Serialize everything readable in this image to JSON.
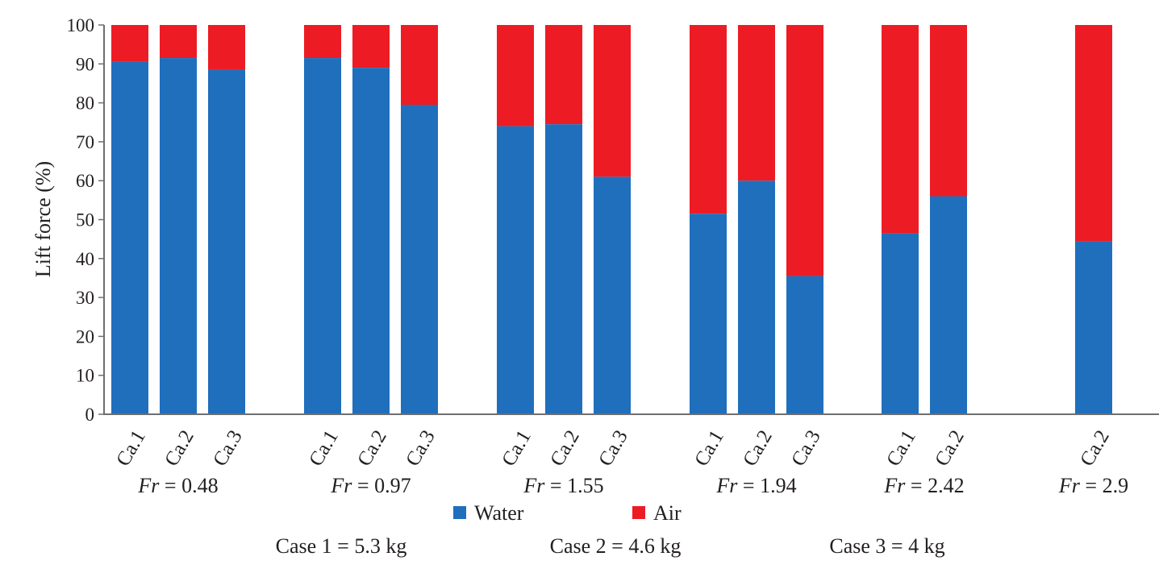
{
  "chart_data": {
    "type": "bar",
    "stacked": true,
    "ylabel": "Lift force (%)",
    "ylim": [
      0,
      100
    ],
    "yticks": [
      "0",
      "10",
      "20",
      "30",
      "40",
      "50",
      "60",
      "70",
      "80",
      "90",
      "100"
    ],
    "group_prefix": "Fr",
    "groups": [
      {
        "label": "Fr = 0.48",
        "fr_value": "= 0.48",
        "cases": [
          "Ca.1",
          "Ca.2",
          "Ca.3"
        ],
        "water": [
          90.5,
          91.5,
          88.5
        ]
      },
      {
        "label": "Fr = 0.97",
        "fr_value": "= 0.97",
        "cases": [
          "Ca.1",
          "Ca.2",
          "Ca.3"
        ],
        "water": [
          91.5,
          89,
          79.5
        ]
      },
      {
        "label": "Fr = 1.55",
        "fr_value": "= 1.55",
        "cases": [
          "Ca.1",
          "Ca.2",
          "Ca.3"
        ],
        "water": [
          74,
          74.5,
          61
        ]
      },
      {
        "label": "Fr = 1.94",
        "fr_value": "= 1.94",
        "cases": [
          "Ca.1",
          "Ca.2",
          "Ca.3"
        ],
        "water": [
          51.5,
          60,
          35.5
        ]
      },
      {
        "label": "Fr = 2.42",
        "fr_value": "= 2.42",
        "cases": [
          "Ca.1",
          "Ca.2"
        ],
        "water": [
          46.5,
          56
        ]
      },
      {
        "label": "Fr = 2.9",
        "fr_value": "= 2.9",
        "cases": [
          "Ca.2"
        ],
        "water": [
          44.5
        ]
      }
    ],
    "series": [
      {
        "name": "Water",
        "color": "#1f6fbd"
      },
      {
        "name": "Air",
        "color": "#ed1c24"
      }
    ],
    "legend_position": "bottom",
    "case_notes": [
      "Case 1 = 5.3 kg",
      "Case 2 = 4.6 kg",
      "Case 3 = 4 kg"
    ]
  }
}
